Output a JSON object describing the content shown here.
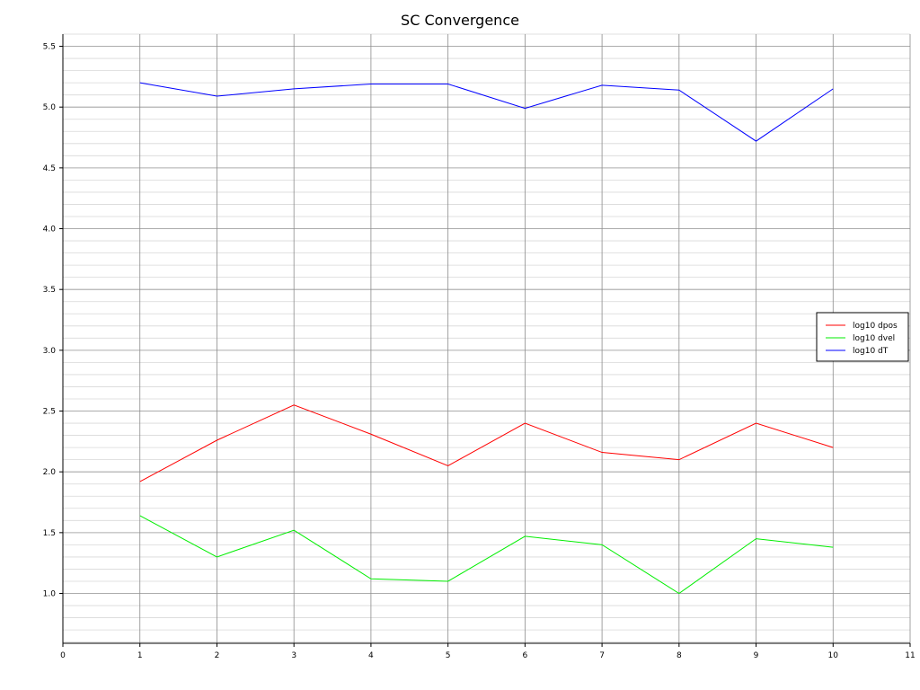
{
  "chart_data": {
    "type": "line",
    "title": "SC Convergence",
    "xlabel": "",
    "ylabel": "",
    "xlim": [
      0,
      11
    ],
    "ylim": [
      0.59,
      5.6
    ],
    "x_ticks": [
      0,
      1,
      2,
      3,
      4,
      5,
      6,
      7,
      8,
      9,
      10,
      11
    ],
    "y_ticks": [
      1.0,
      1.5,
      2.0,
      2.5,
      3.0,
      3.5,
      4.0,
      4.5,
      5.0,
      5.5
    ],
    "y_tick_labels": [
      "1.0",
      "1.5",
      "2.0",
      "2.5",
      "3.0",
      "3.5",
      "4.0",
      "4.5",
      "5.0",
      "5.5"
    ],
    "y_minor_step": 0.1,
    "grid": true,
    "legend_position": "right",
    "x": [
      1,
      2,
      3,
      4,
      5,
      6,
      7,
      8,
      9,
      10
    ],
    "series": [
      {
        "name": "log10 dpos",
        "color": "#ff0000",
        "values": [
          1.92,
          2.26,
          2.55,
          2.31,
          2.05,
          2.4,
          2.16,
          2.1,
          2.4,
          2.2
        ]
      },
      {
        "name": "log10 dvel",
        "color": "#00ee00",
        "values": [
          1.64,
          1.3,
          1.52,
          1.12,
          1.1,
          1.47,
          1.4,
          1.0,
          1.45,
          1.38
        ]
      },
      {
        "name": "log10 dT",
        "color": "#0000ff",
        "values": [
          5.2,
          5.09,
          5.15,
          5.19,
          5.19,
          4.99,
          5.18,
          5.14,
          4.72,
          5.15
        ]
      }
    ]
  }
}
